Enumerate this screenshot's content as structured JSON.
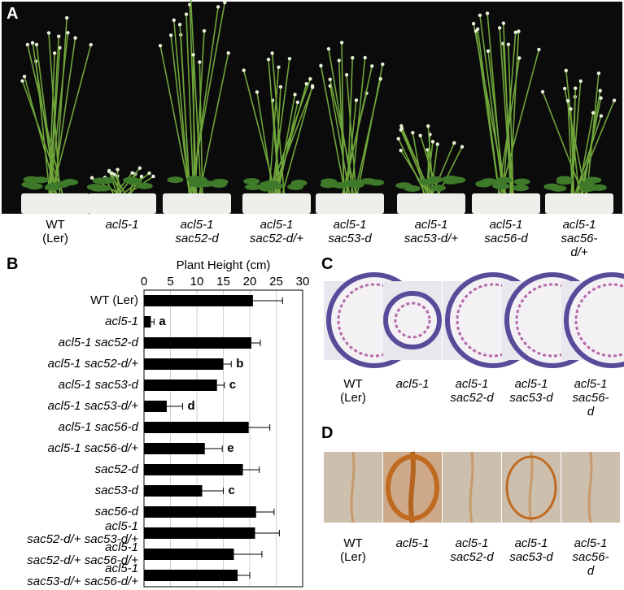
{
  "panel_a": {
    "label": "A",
    "genotypes": [
      "WT\n(Ler)",
      "acl5-1",
      "acl5-1\nsac52-d",
      "acl5-1\nsac52-d/+",
      "acl5-1\nsac53-d",
      "acl5-1\nsac53-d/+",
      "acl5-1\nsac56-d",
      "acl5-1\nsac56-d/+"
    ]
  },
  "chart_data": {
    "type": "bar",
    "orientation": "horizontal",
    "panel_label": "B",
    "title": "Plant Height (cm)",
    "categories": [
      "WT (Ler)",
      "acl5-1",
      "acl5-1 sac52-d",
      "acl5-1 sac52-d/+",
      "acl5-1 sac53-d",
      "acl5-1 sac53-d/+",
      "acl5-1 sac56-d",
      "acl5-1 sac56-d/+",
      "sac52-d",
      "sac53-d",
      "sac56-d",
      "acl5-1\nsac52-d/+ sac53-d/+",
      "acl5-1\nsac52-d/+ sac56-d/+",
      "acl5-1\nsac53-d/+ sac56-d/+"
    ],
    "values": [
      20.6,
      1.3,
      20.3,
      15,
      13.8,
      4.3,
      19.8,
      11.5,
      18.7,
      11,
      21.2,
      21,
      17,
      17.7
    ],
    "errors": [
      5.6,
      0.6,
      1.7,
      1.5,
      1.4,
      3,
      4,
      3.3,
      3.1,
      4,
      3.4,
      4.6,
      5.3,
      2.3
    ],
    "significance": [
      null,
      "a",
      null,
      "b",
      "c",
      "d",
      null,
      "e",
      null,
      "c",
      null,
      null,
      null,
      null
    ],
    "color": "#000000",
    "xlim": [
      0,
      30
    ],
    "xticks": [
      0,
      5,
      10,
      15,
      20,
      25,
      30
    ],
    "grid": true
  },
  "panel_c": {
    "label": "C",
    "genotypes": [
      "WT\n(Ler)",
      "acl5-1",
      "acl5-1\nsac52-d",
      "acl5-1\nsac53-d",
      "acl5-1\nsac56-d"
    ]
  },
  "panel_d": {
    "label": "D",
    "genotypes": [
      "WT\n(Ler)",
      "acl5-1",
      "acl5-1\nsac52-d",
      "acl5-1\nsac53-d",
      "acl5-1\nsac56-d"
    ]
  }
}
